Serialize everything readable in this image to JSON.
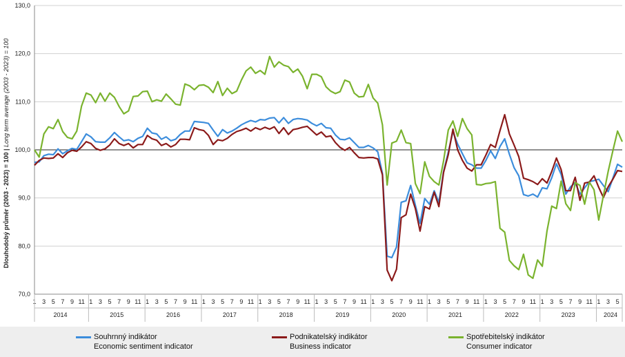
{
  "chart_data": {
    "type": "line",
    "ylabel_cz": "Dlouhodobý průměr (2003 - 2023) = 100",
    "ylabel_en": "Long term average (2003 - 2023) = 100",
    "ylim": [
      70,
      130
    ],
    "yticks": [
      "70,0",
      "80,0",
      "90,0",
      "100,0",
      "110,0",
      "120,0",
      "130,0"
    ],
    "reference_line": 100,
    "grid": true,
    "legend_position": "bottom",
    "years": [
      "2014",
      "2015",
      "2016",
      "2017",
      "2018",
      "2019",
      "2020",
      "2021",
      "2022",
      "2023",
      "2024"
    ],
    "month_ticks": [
      "1",
      "3",
      "5",
      "7",
      "9",
      "11"
    ],
    "last_year_month_ticks": [
      "1",
      "3",
      "5"
    ],
    "series": [
      {
        "name_cz": "Souhrnný indikátor",
        "name_en": "Economic sentiment indicator",
        "color": "#3c8ddc",
        "values": [
          97.4,
          97.5,
          98.8,
          99.1,
          99.0,
          100.2,
          99.2,
          99.8,
          100.3,
          100.1,
          101.7,
          103.3,
          102.7,
          101.7,
          101.6,
          101.6,
          102.5,
          103.6,
          102.7,
          101.9,
          102.1,
          101.7,
          102.4,
          102.8,
          104.5,
          103.5,
          103.3,
          102.2,
          102.7,
          101.9,
          102.2,
          103.2,
          103.9,
          103.9,
          105.9,
          105.8,
          105.7,
          105.5,
          104.1,
          102.8,
          104.2,
          103.5,
          103.9,
          104.5,
          105.2,
          105.7,
          106.1,
          105.8,
          106.3,
          106.2,
          106.6,
          106.7,
          105.6,
          106.7,
          105.5,
          106.3,
          106.5,
          106.4,
          106.2,
          105.5,
          105.0,
          105.5,
          104.6,
          104.5,
          103.1,
          102.2,
          102.1,
          102.5,
          101.5,
          100.5,
          100.5,
          100.9,
          100.4,
          99.6,
          95.1,
          77.9,
          77.6,
          79.8,
          89.1,
          89.4,
          92.6,
          88.5,
          84.7,
          89.9,
          88.7,
          91.5,
          89.1,
          95.5,
          99.5,
          103.8,
          101.2,
          99.2,
          97.3,
          96.9,
          96.2,
          96.2,
          97.8,
          99.8,
          98.2,
          100.7,
          102.3,
          99.1,
          96.3,
          94.6,
          90.7,
          90.4,
          90.8,
          90.2,
          92.1,
          91.9,
          94.2,
          97.1,
          94.9,
          90.8,
          92.3,
          93.2,
          90.8,
          92.1,
          93.4,
          93.6,
          93.9,
          92.6,
          91.3,
          94.1,
          97.0,
          96.4
        ]
      },
      {
        "name_cz": "Podnikatelský indikátor",
        "name_en": "Business indicator",
        "color": "#8b1a1a",
        "values": [
          96.8,
          97.8,
          98.3,
          98.2,
          98.3,
          99.2,
          98.4,
          99.4,
          99.9,
          99.7,
          100.6,
          101.7,
          101.3,
          100.3,
          99.9,
          100.2,
          101.0,
          102.3,
          101.3,
          100.9,
          101.3,
          100.4,
          101.1,
          101.1,
          103.0,
          102.3,
          102.0,
          100.9,
          101.3,
          100.6,
          101.1,
          102.2,
          102.2,
          102.1,
          104.6,
          104.2,
          104.0,
          103.0,
          101.1,
          102.1,
          101.9,
          102.4,
          103.2,
          103.8,
          104.1,
          104.5,
          103.9,
          104.6,
          104.2,
          104.7,
          104.3,
          104.8,
          103.4,
          104.6,
          103.2,
          104.2,
          104.4,
          104.7,
          104.9,
          104.0,
          103.1,
          103.7,
          102.7,
          102.9,
          101.5,
          100.5,
          99.9,
          100.5,
          99.4,
          98.4,
          98.3,
          98.4,
          98.4,
          98.1,
          94.8,
          75.0,
          72.8,
          75.2,
          85.9,
          86.5,
          90.8,
          87.8,
          83.1,
          88.2,
          87.7,
          91.2,
          88.2,
          95.3,
          99.0,
          104.3,
          100.0,
          97.8,
          96.2,
          95.6,
          96.9,
          96.9,
          98.9,
          101.1,
          100.5,
          104.0,
          107.3,
          103.3,
          101.0,
          98.6,
          94.1,
          93.8,
          93.4,
          92.8,
          94.0,
          93.1,
          95.5,
          98.3,
          95.9,
          91.5,
          91.5,
          94.3,
          89.5,
          93.1,
          93.3,
          94.6,
          92.2,
          90.1,
          92.3,
          93.9,
          95.7,
          95.5
        ]
      },
      {
        "name_cz": "Spotřebitelský indikátor",
        "name_en": "Consumer indicator",
        "color": "#7ab32e",
        "values": [
          100.0,
          98.5,
          103.3,
          104.8,
          104.4,
          106.3,
          103.8,
          102.6,
          102.3,
          103.9,
          109.1,
          111.8,
          111.4,
          109.8,
          111.8,
          110.1,
          111.8,
          110.9,
          109.0,
          107.5,
          108.1,
          111.1,
          111.2,
          112.1,
          112.2,
          110.0,
          110.4,
          110.1,
          111.6,
          110.6,
          109.5,
          109.3,
          113.7,
          113.3,
          112.5,
          113.4,
          113.5,
          113.0,
          111.9,
          114.2,
          111.3,
          112.8,
          111.7,
          112.2,
          114.5,
          116.4,
          117.2,
          115.9,
          116.5,
          115.7,
          119.4,
          117.2,
          118.3,
          117.6,
          117.3,
          116.1,
          116.8,
          115.3,
          112.7,
          115.7,
          115.7,
          115.2,
          113.1,
          112.2,
          111.7,
          112.1,
          114.5,
          114.1,
          111.8,
          111.0,
          111.1,
          113.6,
          110.8,
          109.7,
          105.2,
          92.7,
          101.4,
          101.8,
          104.1,
          101.5,
          101.3,
          93.0,
          90.9,
          97.5,
          94.5,
          93.4,
          92.7,
          97.7,
          104.1,
          106.0,
          102.8,
          106.5,
          104.4,
          103.1,
          92.8,
          92.7,
          93.0,
          93.1,
          93.4,
          83.7,
          82.9,
          77.0,
          75.9,
          75.1,
          78.3,
          74.0,
          73.3,
          77.1,
          75.8,
          83.1,
          88.3,
          87.8,
          93.5,
          88.8,
          87.4,
          93.2,
          92.6,
          88.7,
          93.3,
          91.7,
          85.4,
          90.5,
          95.5,
          99.8,
          103.9,
          101.7
        ]
      }
    ]
  }
}
